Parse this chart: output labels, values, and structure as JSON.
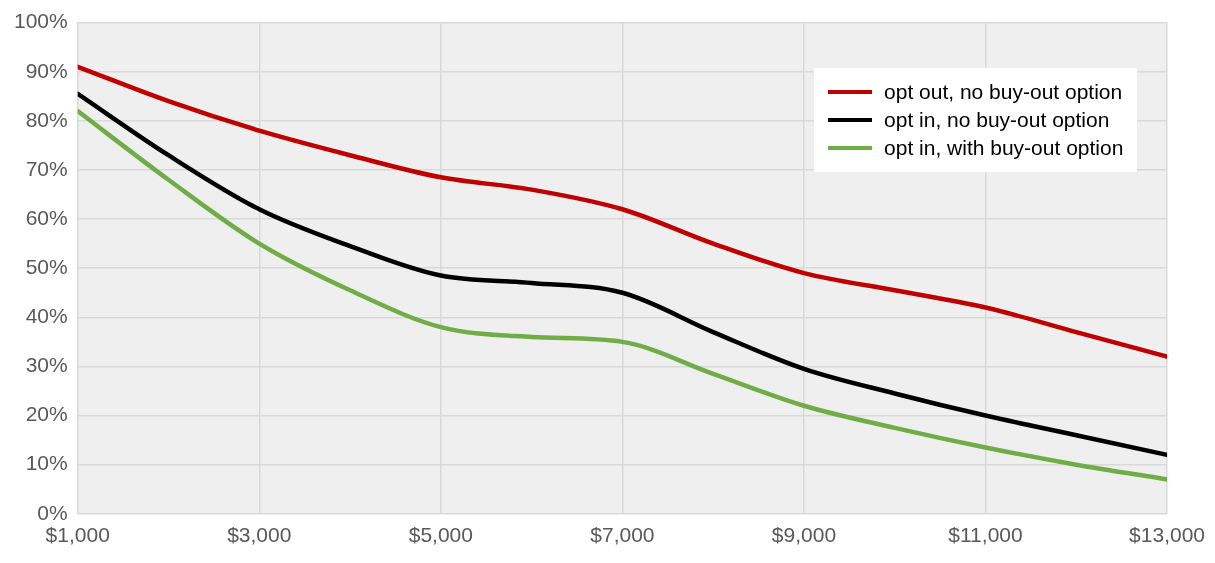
{
  "chart_data": {
    "type": "line",
    "x": [
      1000,
      2000,
      3000,
      4000,
      5000,
      6000,
      7000,
      8000,
      9000,
      10000,
      11000,
      12000,
      13000
    ],
    "xlim": [
      1000,
      13000
    ],
    "xticks": [
      {
        "value": 1000,
        "label": "$1,000"
      },
      {
        "value": 3000,
        "label": "$3,000"
      },
      {
        "value": 5000,
        "label": "$5,000"
      },
      {
        "value": 7000,
        "label": "$7,000"
      },
      {
        "value": 9000,
        "label": "$9,000"
      },
      {
        "value": 11000,
        "label": "$11,000"
      },
      {
        "value": 13000,
        "label": "$13,000"
      }
    ],
    "ylim": [
      0,
      100
    ],
    "yticks": [
      {
        "value": 0,
        "label": "0%"
      },
      {
        "value": 10,
        "label": "10%"
      },
      {
        "value": 20,
        "label": "20%"
      },
      {
        "value": 30,
        "label": "30%"
      },
      {
        "value": 40,
        "label": "40%"
      },
      {
        "value": 50,
        "label": "50%"
      },
      {
        "value": 60,
        "label": "60%"
      },
      {
        "value": 70,
        "label": "70%"
      },
      {
        "value": 80,
        "label": "80%"
      },
      {
        "value": 90,
        "label": "90%"
      },
      {
        "value": 100,
        "label": "100%"
      }
    ],
    "series": [
      {
        "name": "opt out, no buy-out option",
        "color": "#c00000",
        "values": [
          91,
          84,
          78,
          73,
          68.5,
          66,
          62,
          55,
          49,
          45.5,
          42,
          37,
          32
        ]
      },
      {
        "name": "opt in, no buy-out option",
        "color": "#000000",
        "values": [
          85.5,
          73,
          62,
          54.5,
          48.5,
          47,
          45,
          37,
          29.5,
          24.5,
          20,
          16,
          12
        ]
      },
      {
        "name": "opt in, with buy-out option",
        "color": "#70ad47",
        "values": [
          82,
          68,
          55,
          45.5,
          38,
          36,
          35,
          28.5,
          22,
          17.5,
          13.5,
          10,
          7
        ]
      }
    ],
    "grid": true,
    "legend": "top right",
    "marker": "none",
    "line_style": "solid"
  }
}
